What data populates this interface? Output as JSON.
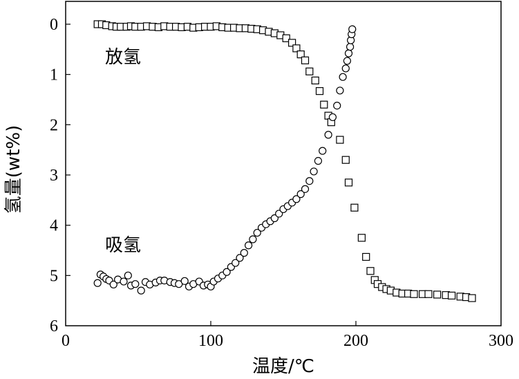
{
  "chart_data": {
    "type": "scatter",
    "title": "",
    "xlabel": "温度/℃",
    "ylabel": "氢量(wt%)",
    "xlim": [
      0,
      300
    ],
    "ylim": [
      0,
      6
    ],
    "y_inverted": true,
    "x_ticks": [
      "0",
      "100",
      "200",
      "300"
    ],
    "y_ticks": [
      "0",
      "1",
      "2",
      "3",
      "4",
      "5",
      "6"
    ],
    "annotations": [
      {
        "text": "放氢",
        "at": [
          10,
          0.6
        ]
      },
      {
        "text": "吸氢",
        "at": [
          10,
          4.5
        ]
      }
    ],
    "series": [
      {
        "marker": "square",
        "x": [
          22,
          25,
          28,
          32,
          35,
          38,
          42,
          45,
          48,
          52,
          56,
          60,
          64,
          68,
          72,
          76,
          80,
          84,
          88,
          92,
          96,
          100,
          104,
          108,
          112,
          116,
          120,
          124,
          128,
          132,
          136,
          140,
          144,
          148,
          152,
          156,
          159,
          162,
          165,
          168,
          172,
          175,
          178,
          181,
          183,
          189,
          193,
          195,
          199,
          204,
          207,
          210,
          213,
          215,
          218,
          221,
          224,
          228,
          232,
          236,
          240,
          246,
          250,
          256,
          262,
          266,
          272,
          276,
          280
        ],
        "y": [
          0.0,
          0.0,
          0.02,
          0.04,
          0.05,
          0.05,
          0.05,
          0.04,
          0.05,
          0.05,
          0.04,
          0.05,
          0.06,
          0.04,
          0.05,
          0.05,
          0.06,
          0.05,
          0.07,
          0.06,
          0.05,
          0.05,
          0.04,
          0.06,
          0.07,
          0.07,
          0.08,
          0.08,
          0.09,
          0.1,
          0.12,
          0.15,
          0.18,
          0.22,
          0.28,
          0.37,
          0.48,
          0.6,
          0.72,
          0.94,
          1.12,
          1.33,
          1.6,
          1.82,
          1.95,
          2.3,
          2.7,
          3.15,
          3.65,
          4.25,
          4.63,
          4.91,
          5.09,
          5.17,
          5.23,
          5.27,
          5.3,
          5.34,
          5.36,
          5.36,
          5.37,
          5.37,
          5.37,
          5.38,
          5.39,
          5.4,
          5.42,
          5.43,
          5.45
        ]
      },
      {
        "marker": "circle",
        "x": [
          22,
          24,
          26,
          28,
          30,
          33,
          36,
          40,
          43,
          45,
          48,
          52,
          55,
          58,
          62,
          65,
          68,
          72,
          75,
          78,
          82,
          85,
          88,
          92,
          95,
          98,
          100,
          102,
          105,
          108,
          111,
          114,
          117,
          120,
          123,
          126,
          129,
          132,
          135,
          138,
          141,
          144,
          147,
          150,
          153,
          156,
          159,
          162,
          165,
          168,
          171,
          174,
          177,
          181,
          184,
          187,
          189,
          191,
          193,
          194,
          195,
          196,
          196.5,
          197,
          197.5
        ],
        "y": [
          5.15,
          4.98,
          5.02,
          5.07,
          5.1,
          5.18,
          5.08,
          5.12,
          5.0,
          5.2,
          5.17,
          5.3,
          5.13,
          5.18,
          5.14,
          5.1,
          5.1,
          5.13,
          5.15,
          5.17,
          5.11,
          5.22,
          5.17,
          5.12,
          5.2,
          5.18,
          5.22,
          5.12,
          5.06,
          5.0,
          4.93,
          4.83,
          4.75,
          4.65,
          4.55,
          4.4,
          4.28,
          4.15,
          4.05,
          3.98,
          3.92,
          3.86,
          3.77,
          3.68,
          3.62,
          3.55,
          3.48,
          3.38,
          3.28,
          3.12,
          2.93,
          2.72,
          2.52,
          2.2,
          1.85,
          1.62,
          1.32,
          1.05,
          0.88,
          0.73,
          0.58,
          0.45,
          0.32,
          0.2,
          0.1
        ]
      }
    ]
  }
}
